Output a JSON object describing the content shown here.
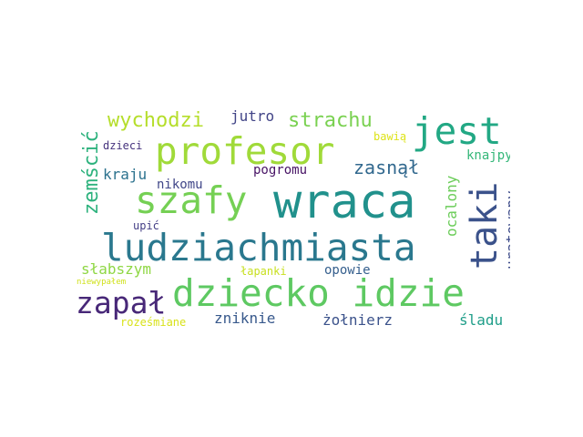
{
  "words": [
    {
      "text": "wraca",
      "color": "#21918c"
    },
    {
      "text": "ludziachmiasta",
      "color": "#2a788e"
    },
    {
      "text": "dziecko idzie",
      "color": "#5ec962"
    },
    {
      "text": "profesor",
      "color": "#a0da39"
    },
    {
      "text": "jest",
      "color": "#22a884"
    },
    {
      "text": "szafy",
      "color": "#75d054"
    },
    {
      "text": "taki",
      "color": "#3b528b"
    },
    {
      "text": "zapał",
      "color": "#482878"
    },
    {
      "text": "wychodzi",
      "color": "#b5de2b"
    },
    {
      "text": "strachu",
      "color": "#7ad151"
    },
    {
      "text": "zemścić",
      "color": "#2db27d"
    },
    {
      "text": "zasnął",
      "color": "#31688e"
    },
    {
      "text": "kraju",
      "color": "#2c728e"
    },
    {
      "text": "jutro",
      "color": "#414487"
    },
    {
      "text": "ocalony",
      "color": "#6ccd5a"
    },
    {
      "text": "uratowany",
      "color": "#3e4c8a"
    },
    {
      "text": "słabszym",
      "color": "#8fd744"
    },
    {
      "text": "zniknie",
      "color": "#38598c"
    },
    {
      "text": "żołnierz",
      "color": "#3b528b"
    },
    {
      "text": "śladu",
      "color": "#1f9e89"
    },
    {
      "text": "nikomu",
      "color": "#404688"
    },
    {
      "text": "pogromu",
      "color": "#471365"
    },
    {
      "text": "knajpy",
      "color": "#35b779"
    },
    {
      "text": "opowie",
      "color": "#355f8d"
    },
    {
      "text": "dzieci",
      "color": "#46337e"
    },
    {
      "text": "bawią",
      "color": "#dde318"
    },
    {
      "text": "upić",
      "color": "#433e85"
    },
    {
      "text": "łapanki",
      "color": "#c8e020"
    },
    {
      "text": "roześmiane",
      "color": "#d8e219"
    },
    {
      "text": "niewypałem",
      "color": "#d0e11c"
    }
  ]
}
